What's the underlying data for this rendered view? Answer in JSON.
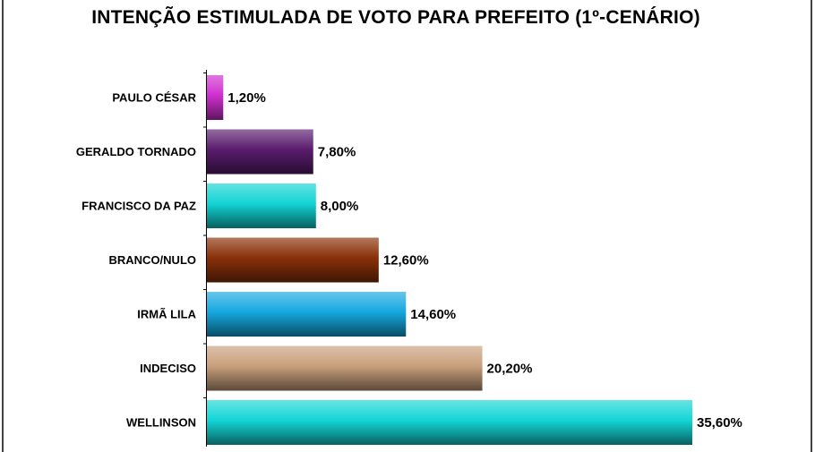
{
  "chart_data": {
    "type": "bar",
    "orientation": "horizontal",
    "title": "INTENÇÃO ESTIMULADA DE VOTO PARA PREFEITO (1º-CENÁRIO)",
    "categories": [
      "PAULO CÉSAR",
      "GERALDO TORNADO",
      "FRANCISCO DA PAZ",
      "BRANCO/NULO",
      "IRMÃ LILA",
      "INDECISO",
      "WELLINSON"
    ],
    "values": [
      1.2,
      7.8,
      8.0,
      12.6,
      14.6,
      20.2,
      35.6
    ],
    "value_labels": [
      "1,20%",
      "7,80%",
      "8,00%",
      "12,60%",
      "14,60%",
      "20,20%",
      "35,60%"
    ],
    "unit": "%",
    "xlim": [
      0,
      35.6
    ],
    "grid": false,
    "legend": "none",
    "colors": [
      "#d02fd0",
      "#5a1c6e",
      "#12d4d4",
      "#8a3008",
      "#16a8e0",
      "#c9a07c",
      "#14d6d6"
    ]
  }
}
